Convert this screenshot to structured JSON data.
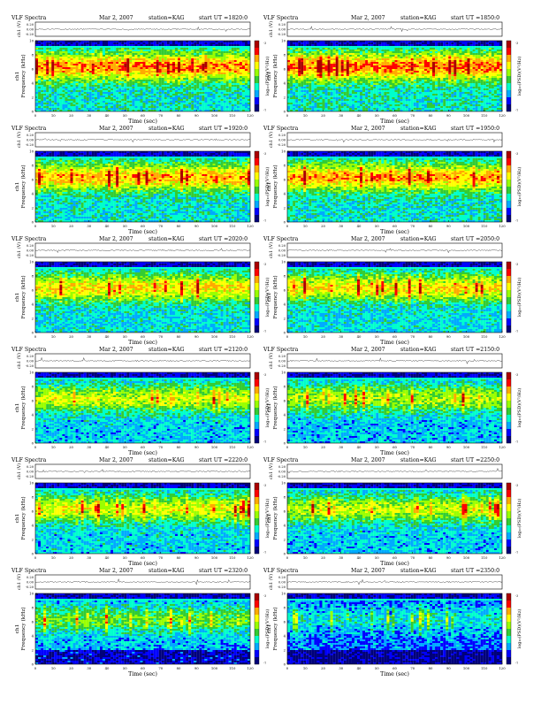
{
  "page": {
    "panels": [
      {
        "title": "VLF Spectra",
        "date": "Mar 2, 2007",
        "station": "station=KAG",
        "start": "start UT =1820:0",
        "intensity": 0.78
      },
      {
        "title": "VLF Spectra",
        "date": "Mar 2, 2007",
        "station": "station=KAG",
        "start": "start UT =1850:0",
        "intensity": 0.8
      },
      {
        "title": "VLF Spectra",
        "date": "Mar 2, 2007",
        "station": "station=KAG",
        "start": "start UT =1920:0",
        "intensity": 0.72
      },
      {
        "title": "VLF Spectra",
        "date": "Mar 2, 2007",
        "station": "station=KAG",
        "start": "start UT =1950:0",
        "intensity": 0.74
      },
      {
        "title": "VLF Spectra",
        "date": "Mar 2, 2007",
        "station": "station=KAG",
        "start": "start UT =2020:0",
        "intensity": 0.66
      },
      {
        "title": "VLF Spectra",
        "date": "Mar 2, 2007",
        "station": "station=KAG",
        "start": "start UT =2050:0",
        "intensity": 0.64
      },
      {
        "title": "VLF Spectra",
        "date": "Mar 2, 2007",
        "station": "station=KAG",
        "start": "start UT =2120:0",
        "intensity": 0.56
      },
      {
        "title": "VLF Spectra",
        "date": "Mar 2, 2007",
        "station": "station=KAG",
        "start": "start UT =2150:0",
        "intensity": 0.52
      },
      {
        "title": "VLF Spectra",
        "date": "Mar 2, 2007",
        "station": "station=KAG",
        "start": "start UT =2220:0",
        "intensity": 0.58
      },
      {
        "title": "VLF Spectra",
        "date": "Mar 2, 2007",
        "station": "station=KAG",
        "start": "start UT =2250:0",
        "intensity": 0.55
      },
      {
        "title": "VLF Spectra",
        "date": "Mar 2, 2007",
        "station": "station=KAG",
        "start": "start UT =2320:0",
        "intensity": 0.42
      },
      {
        "title": "VLF Spectra",
        "date": "Mar 2, 2007",
        "station": "station=KAG",
        "start": "start UT =2350:0",
        "intensity": 0.22
      }
    ],
    "ch_label": "ch1 (V)",
    "wave_ticks": [
      "0.20",
      "0.00",
      "-0.20"
    ],
    "ylabel_left": "ch1",
    "ylabel": "Frequency (kHz)",
    "xlabel": "Time (sec)",
    "xticks": [
      "0",
      "10",
      "20",
      "30",
      "40",
      "50",
      "60",
      "70",
      "80",
      "90",
      "100",
      "110",
      "120"
    ],
    "yticks": [
      "0",
      "2",
      "4",
      "6",
      "8",
      "10"
    ],
    "colorbar_label": "log₁₀(PSD)(V²/Hz)",
    "colorbar_ticks": [
      "-3",
      "-7"
    ]
  },
  "chart_data": {
    "type": "heatmap",
    "xlabel": "Time (sec)",
    "ylabel": "Frequency (kHz)",
    "xlim": [
      0,
      120
    ],
    "ylim": [
      0,
      10
    ],
    "colorscale": [
      "#00007a",
      "#0000ff",
      "#00aaff",
      "#00ffcc",
      "#33cc33",
      "#99ff00",
      "#ffff00",
      "#ffaa00",
      "#ff0000",
      "#aa0000"
    ],
    "panel_count": 12
  }
}
